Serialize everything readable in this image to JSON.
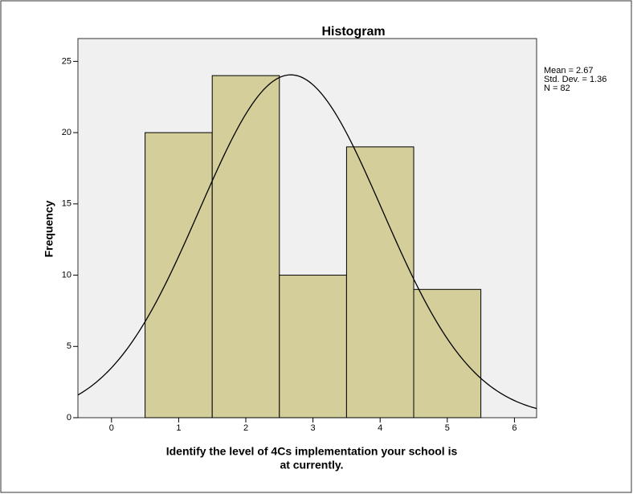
{
  "chart_data": {
    "type": "histogram",
    "title": "Histogram",
    "x_label": [
      "Identify the level of 4Cs implementation your school is",
      "at currently."
    ],
    "y_label": "Frequency",
    "bins": [
      0.5,
      1.5,
      2.5,
      3.5,
      4.5,
      5.5
    ],
    "counts": [
      20,
      24,
      10,
      19,
      9
    ],
    "color": "#d4cf9a",
    "xlim": [
      -0.5,
      6.33
    ],
    "xticks": [
      0,
      1,
      2,
      3,
      4,
      5,
      6
    ],
    "ylim": [
      0,
      26.6
    ],
    "yticks": [
      0,
      5,
      10,
      15,
      20,
      25
    ],
    "stats": [
      {
        "value": 2.67,
        "label": "Mean = 2.67"
      },
      {
        "value": 1.36,
        "label": "Std. Dev. = 1.36"
      },
      {
        "value": 82,
        "label": "N = 82"
      }
    ]
  }
}
